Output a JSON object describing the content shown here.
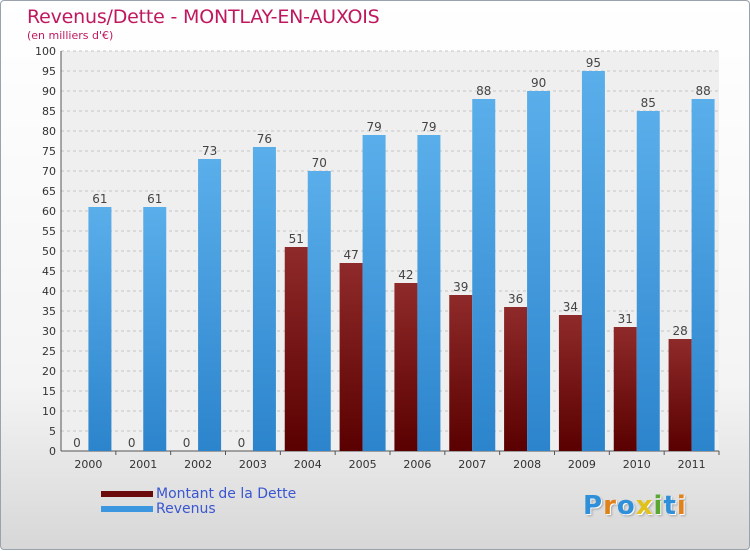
{
  "header": {
    "title": "Revenus/Dette - MONTLAY-EN-AUXOIS",
    "subtitle": "(en milliers d'€)"
  },
  "legend": {
    "items": [
      {
        "label": "Montant de la Dette",
        "color": "#6b0a0a"
      },
      {
        "label": "Revenus",
        "color": "#3c97e0"
      }
    ]
  },
  "logo": {
    "text": "Proxiti",
    "letters": [
      {
        "ch": "P",
        "color": "#2f8fd8"
      },
      {
        "ch": "r",
        "color": "#e0821b"
      },
      {
        "ch": "o",
        "color": "#2f8fd8"
      },
      {
        "ch": "x",
        "color": "#e0c21b"
      },
      {
        "ch": "i",
        "color": "#5aa832"
      },
      {
        "ch": "t",
        "color": "#2f8fd8"
      },
      {
        "ch": "i",
        "color": "#e0821b"
      }
    ]
  },
  "chart_data": {
    "type": "bar",
    "title": "Revenus/Dette - MONTLAY-EN-AUXOIS",
    "subtitle": "(en milliers d'€)",
    "categories": [
      "2000",
      "2001",
      "2002",
      "2003",
      "2004",
      "2005",
      "2006",
      "2007",
      "2008",
      "2009",
      "2010",
      "2011"
    ],
    "series": [
      {
        "name": "Montant de la Dette",
        "color": "#6b0a0a",
        "values": [
          0,
          0,
          0,
          0,
          51,
          47,
          42,
          39,
          36,
          34,
          31,
          28
        ]
      },
      {
        "name": "Revenus",
        "color": "#3c97e0",
        "values": [
          61,
          61,
          73,
          76,
          70,
          79,
          79,
          88,
          90,
          95,
          85,
          88
        ]
      }
    ],
    "ylim": [
      0,
      100
    ],
    "yticks": [
      0,
      5,
      10,
      15,
      20,
      25,
      30,
      35,
      40,
      45,
      50,
      55,
      60,
      65,
      70,
      75,
      80,
      85,
      90,
      95,
      100
    ],
    "grid": true,
    "legend_position": "bottom-left"
  }
}
